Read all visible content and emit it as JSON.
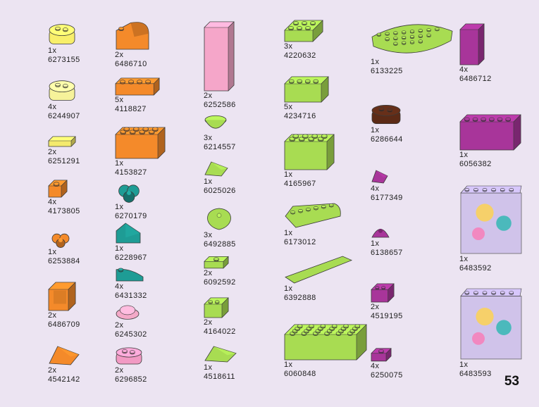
{
  "page": {
    "number": "53"
  },
  "parts": [
    {
      "qty": "1x",
      "code": "6273155",
      "shape": "round2",
      "color": "#f8ef6a"
    },
    {
      "qty": "4x",
      "code": "6244907",
      "shape": "round2",
      "color": "#f6f29a"
    },
    {
      "qty": "2x",
      "code": "6251291",
      "shape": "tile",
      "color": "#f4ea6d"
    },
    {
      "qty": "4x",
      "code": "4173805",
      "shape": "brick1",
      "color": "#f48a2a"
    },
    {
      "qty": "1x",
      "code": "6253884",
      "shape": "flower",
      "color": "#f48a2a"
    },
    {
      "qty": "2x",
      "code": "6486709",
      "shape": "panel",
      "color": "#f48a2a"
    },
    {
      "qty": "2x",
      "code": "4542142",
      "shape": "wedge",
      "color": "#f48a2a"
    },
    {
      "qty": "2x",
      "code": "6486710",
      "shape": "arch",
      "color": "#f48a2a"
    },
    {
      "qty": "5x",
      "code": "4118827",
      "shape": "brick",
      "studs": 4,
      "color": "#f48a2a"
    },
    {
      "qty": "1x",
      "code": "4153827",
      "shape": "brick",
      "studs": 4,
      "rows": 2,
      "color": "#f48a2a"
    },
    {
      "qty": "1x",
      "code": "6270179",
      "shape": "flower",
      "color": "#1e9c95"
    },
    {
      "qty": "1x",
      "code": "6228967",
      "shape": "slope",
      "color": "#1e9c95"
    },
    {
      "qty": "4x",
      "code": "6431332",
      "shape": "curve",
      "color": "#1e9c95"
    },
    {
      "qty": "2x",
      "code": "6245302",
      "shape": "dish",
      "color": "#f4a9c8"
    },
    {
      "qty": "2x",
      "code": "6296852",
      "shape": "round2",
      "color": "#f29ac4"
    },
    {
      "qty": "2x",
      "code": "6252586",
      "shape": "tall",
      "color": "#f5a6c9"
    },
    {
      "qty": "3x",
      "code": "6214557",
      "shape": "bowl",
      "color": "#a8dc52"
    },
    {
      "qty": "1x",
      "code": "6025026",
      "shape": "wedge",
      "color": "#a8dc52"
    },
    {
      "qty": "3x",
      "code": "6492885",
      "shape": "leaf",
      "color": "#a8dc52"
    },
    {
      "qty": "2x",
      "code": "6092592",
      "shape": "jumper",
      "color": "#a8dc52"
    },
    {
      "qty": "2x",
      "code": "4164022",
      "shape": "brick",
      "studs": 2,
      "color": "#a8dc52"
    },
    {
      "qty": "1x",
      "code": "4518611",
      "shape": "wedge",
      "color": "#a8dc52"
    },
    {
      "qty": "3x",
      "code": "4220632",
      "shape": "plate",
      "studs": 3,
      "rows": 2,
      "color": "#a8dc52"
    },
    {
      "qty": "5x",
      "code": "4234716",
      "shape": "brick",
      "studs": 4,
      "color": "#a8dc52"
    },
    {
      "qty": "1x",
      "code": "4165967",
      "shape": "brick",
      "studs": 4,
      "rows": 2,
      "color": "#a8dc52"
    },
    {
      "qty": "1x",
      "code": "6173012",
      "shape": "roundplate",
      "color": "#a8dc52"
    },
    {
      "qty": "1x",
      "code": "6392888",
      "shape": "longtile",
      "color": "#a8dc52"
    },
    {
      "qty": "1x",
      "code": "6060848",
      "shape": "plate",
      "studs": 6,
      "rows": 4,
      "color": "#a8dc52"
    },
    {
      "qty": "1x",
      "code": "6133225",
      "shape": "halfcircle",
      "color": "#a8dc52"
    },
    {
      "qty": "1x",
      "code": "6286644",
      "shape": "round2",
      "color": "#5c2a16"
    },
    {
      "qty": "4x",
      "code": "6177349",
      "shape": "wedge",
      "color": "#a8359a"
    },
    {
      "qty": "1x",
      "code": "6138657",
      "shape": "dome",
      "color": "#a8359a"
    },
    {
      "qty": "2x",
      "code": "4519195",
      "shape": "brick",
      "studs": 2,
      "color": "#a8359a"
    },
    {
      "qty": "4x",
      "code": "6250075",
      "shape": "jumper",
      "color": "#a8359a"
    },
    {
      "qty": "4x",
      "code": "6486712",
      "shape": "tall",
      "color": "#a8359a"
    },
    {
      "qty": "1x",
      "code": "6056382",
      "shape": "brick",
      "studs": 6,
      "color": "#a8359a"
    },
    {
      "qty": "1x",
      "code": "6483592",
      "shape": "window",
      "color": "#c7b8e8"
    },
    {
      "qty": "1x",
      "code": "6483593",
      "shape": "window",
      "color": "#c7b8e8"
    }
  ]
}
